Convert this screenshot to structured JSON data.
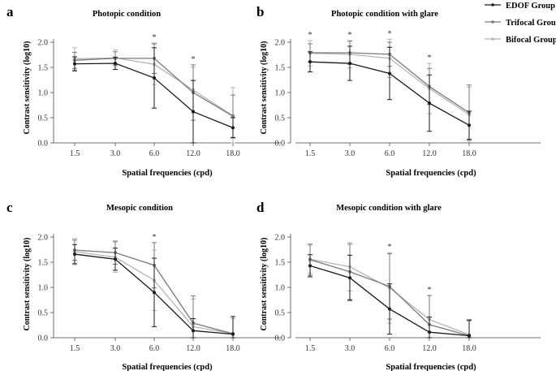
{
  "legend": [
    {
      "name": "EDOF Group",
      "color": "#1a1a1a"
    },
    {
      "name": "Trifocal Group",
      "color": "#7a7a7a"
    },
    {
      "name": "Bifocal Group",
      "color": "#b5b5b5"
    }
  ],
  "chart_data": [
    {
      "type": "line",
      "panel": "a",
      "title": "Photopic condition",
      "xlabel": "Spatial frequencies (cpd)",
      "ylabel": "Contrast sensitivity (log10)",
      "categories": [
        "1.5",
        "3.0",
        "6.0",
        "12.0",
        "18.0"
      ],
      "ylim": [
        0,
        2.0
      ],
      "yticks": [
        "0.0",
        "0.5",
        "1.0",
        "1.5",
        "2.0"
      ],
      "significance": [
        2,
        3
      ],
      "series": [
        {
          "name": "EDOF Group",
          "values": [
            1.57,
            1.58,
            1.29,
            0.62,
            0.3
          ],
          "err": [
            0.14,
            0.12,
            0.6,
            0.62,
            0.2
          ]
        },
        {
          "name": "Trifocal Group",
          "values": [
            1.64,
            1.68,
            1.68,
            1.0,
            0.53
          ],
          "err": [
            0.16,
            0.13,
            0.3,
            0.55,
            0.42
          ]
        },
        {
          "name": "Bifocal Group",
          "values": [
            1.67,
            1.69,
            1.56,
            1.05,
            0.54
          ],
          "err": [
            0.22,
            0.16,
            0.4,
            0.45,
            0.56
          ]
        }
      ]
    },
    {
      "type": "line",
      "panel": "b",
      "title": "Photopic condition with glare",
      "xlabel": "Spatial frequencies (cpd)",
      "ylabel": "Contrast sensitivity (log10)",
      "categories": [
        "1.5",
        "3.0",
        "6.0",
        "12.0",
        "18.0"
      ],
      "ylim": [
        0,
        2.0
      ],
      "yticks": [
        "0.0",
        "0.5",
        "1.0",
        "1.5",
        "2.0"
      ],
      "significance": [
        0,
        1,
        2,
        3
      ],
      "series": [
        {
          "name": "EDOF Group",
          "values": [
            1.61,
            1.58,
            1.38,
            0.79,
            0.35
          ],
          "err": [
            0.2,
            0.34,
            0.52,
            0.56,
            0.28
          ]
        },
        {
          "name": "Trifocal Group",
          "values": [
            1.79,
            1.79,
            1.76,
            1.12,
            0.6
          ],
          "err": [
            0.18,
            0.23,
            0.24,
            0.36,
            0.55
          ]
        },
        {
          "name": "Bifocal Group",
          "values": [
            1.78,
            1.76,
            1.68,
            1.08,
            0.56
          ],
          "err": [
            0.25,
            0.27,
            0.38,
            0.5,
            0.55
          ]
        }
      ]
    },
    {
      "type": "line",
      "panel": "c",
      "title": "Mesopic condition",
      "xlabel": "Spatial frequencies (cpd)",
      "ylabel": "Contrast sensitivity (log10)",
      "categories": [
        "1.5",
        "3.0",
        "6.0",
        "12.0",
        "18.0"
      ],
      "ylim": [
        0,
        2.0
      ],
      "yticks": [
        "0.0",
        "0.5",
        "1.0",
        "1.5",
        "2.0"
      ],
      "significance": [
        2
      ],
      "series": [
        {
          "name": "EDOF Group",
          "values": [
            1.66,
            1.56,
            0.9,
            0.14,
            0.07
          ],
          "err": [
            0.19,
            0.22,
            0.68,
            0.24,
            0.35
          ]
        },
        {
          "name": "Trifocal Group",
          "values": [
            1.74,
            1.69,
            1.44,
            0.29,
            0.08
          ],
          "err": [
            0.2,
            0.23,
            0.45,
            0.54,
            0.34
          ]
        },
        {
          "name": "Bifocal Group",
          "values": [
            1.71,
            1.6,
            1.14,
            0.22,
            0.08
          ],
          "err": [
            0.26,
            0.3,
            0.6,
            0.55,
            0.3
          ]
        }
      ]
    },
    {
      "type": "line",
      "panel": "d",
      "title": "Mesopic condition with glare",
      "xlabel": "Spatial frequencies (cpd)",
      "ylabel": "Contrast sensitivity (log10)",
      "categories": [
        "1.5",
        "3.0",
        "6.0",
        "12.0",
        "18.0"
      ],
      "ylim": [
        0,
        2.0
      ],
      "yticks": [
        "0.0",
        "0.5",
        "1.0",
        "1.5",
        "2.0"
      ],
      "significance": [
        2,
        3
      ],
      "series": [
        {
          "name": "EDOF Group",
          "values": [
            1.43,
            1.19,
            0.57,
            0.11,
            0.04
          ],
          "err": [
            0.22,
            0.45,
            0.5,
            0.3,
            0.3
          ]
        },
        {
          "name": "Trifocal Group",
          "values": [
            1.55,
            1.31,
            1.02,
            0.26,
            0.04
          ],
          "err": [
            0.31,
            0.55,
            0.65,
            0.58,
            0.32
          ]
        },
        {
          "name": "Bifocal Group",
          "values": [
            1.56,
            1.41,
            0.99,
            0.36,
            0.06
          ],
          "err": [
            0.28,
            0.48,
            0.7,
            0.48,
            0.3
          ]
        }
      ]
    }
  ]
}
